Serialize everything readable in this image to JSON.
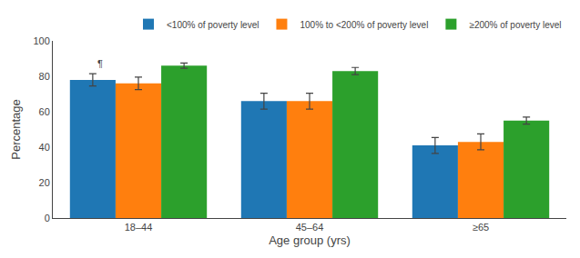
{
  "chart_data": {
    "type": "bar",
    "xlabel": "Age group (yrs)",
    "ylabel": "Percentage",
    "categories": [
      "18–44",
      "45–64",
      "≥65"
    ],
    "series": [
      {
        "name": "<100% of poverty level",
        "values": [
          78,
          66,
          41
        ],
        "errors": [
          3.5,
          4.5,
          4.5
        ]
      },
      {
        "name": "100% to <200% of poverty level",
        "values": [
          76,
          66,
          43
        ],
        "errors": [
          3.5,
          4.5,
          4.5
        ]
      },
      {
        "name": "≥200% of poverty level",
        "values": [
          86,
          83,
          55
        ],
        "errors": [
          1.5,
          2.0,
          2.0
        ]
      }
    ],
    "ylim": [
      0,
      100
    ],
    "yticks": [
      0,
      20,
      40,
      60,
      80,
      100
    ],
    "annotation": "¶",
    "legend": "upper right",
    "grid": false
  }
}
